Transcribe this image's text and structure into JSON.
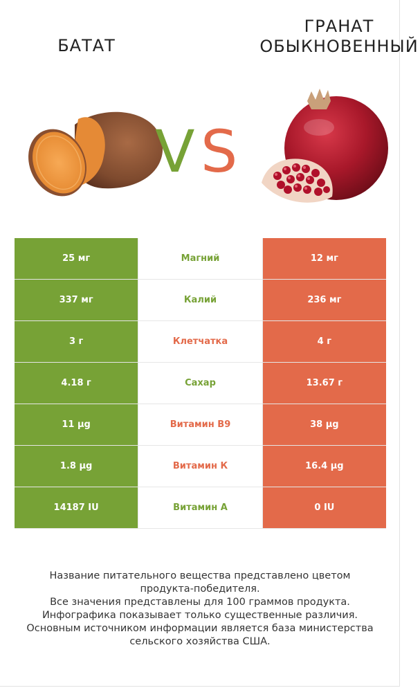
{
  "left_food": {
    "name": "батат",
    "color": "#77a236",
    "image_icon": "sweet-potato-image"
  },
  "right_food": {
    "name_line1": "гранат",
    "name_line2": "обыкновенный",
    "color": "#e36a4a",
    "image_icon": "pomegranate-image"
  },
  "vs": {
    "v": "V",
    "s": "S"
  },
  "rows": [
    {
      "left": "25 мг",
      "nutrient": "Магний",
      "winner": "left",
      "right": "12 мг"
    },
    {
      "left": "337 мг",
      "nutrient": "Калий",
      "winner": "left",
      "right": "236 мг"
    },
    {
      "left": "3 г",
      "nutrient": "Клетчатка",
      "winner": "right",
      "right": "4 г"
    },
    {
      "left": "4.18 г",
      "nutrient": "Сахар",
      "winner": "left",
      "right": "13.67 г"
    },
    {
      "left": "11 µg",
      "nutrient": "Витамин B9",
      "winner": "right",
      "right": "38 µg"
    },
    {
      "left": "1.8 µg",
      "nutrient": "Витамин К",
      "winner": "right",
      "right": "16.4 µg"
    },
    {
      "left": "14187 IU",
      "nutrient": "Витамин A",
      "winner": "left",
      "right": "0 IU"
    }
  ],
  "notes": [
    "Название питательного вещества представлено цветом",
    "продукта-победителя.",
    "Все значения представлены для 100 граммов продукта.",
    "Инфографика показывает только существенные различия.",
    "Основным источником информации является база министерства",
    "сельского хозяйства США."
  ]
}
